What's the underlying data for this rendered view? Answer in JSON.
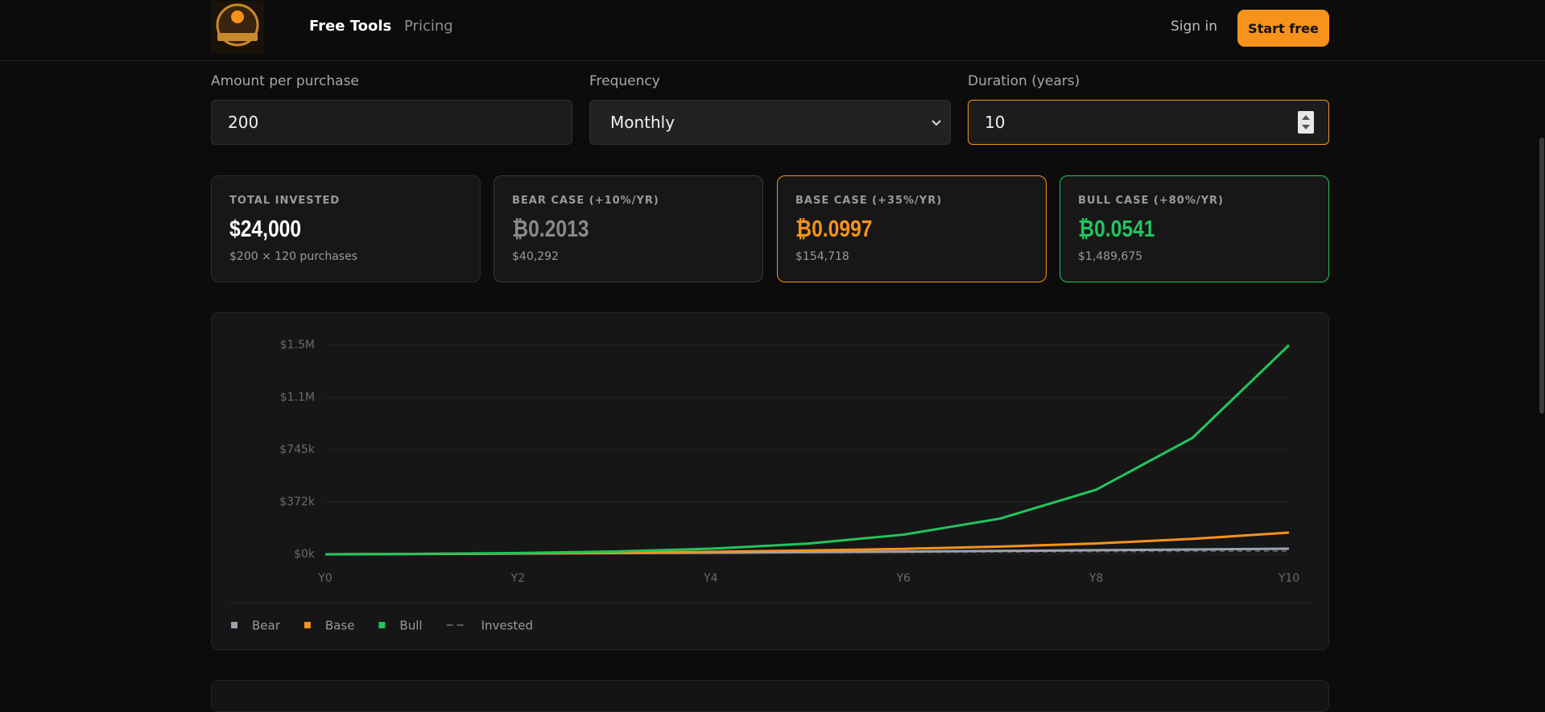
{
  "nav": {
    "links": [
      "Free Tools",
      "Pricing"
    ],
    "sign_in": "Sign in",
    "cta": "Start free"
  },
  "form": {
    "fields": [
      {
        "label": "Amount per purchase",
        "value": "200"
      },
      {
        "label": "Frequency",
        "value": "Monthly"
      },
      {
        "label": "Duration (years)",
        "value": "10"
      }
    ]
  },
  "cards": [
    {
      "label": "TOTAL INVESTED",
      "value": "$24,000",
      "sub": "$200 × 120 purchases"
    },
    {
      "label": "BEAR CASE (+10%/YR)",
      "value": "₿0.2013",
      "sub": "$40,292"
    },
    {
      "label": "BASE CASE (+35%/YR)",
      "value": "₿0.0997",
      "sub": "$154,718"
    },
    {
      "label": "BULL CASE (+80%/YR)",
      "value": "₿0.0541",
      "sub": "$1,489,675"
    }
  ],
  "chart_data": {
    "type": "line",
    "categories": [
      "Y0",
      null,
      "Y2",
      null,
      "Y4",
      null,
      "Y6",
      null,
      "Y8",
      null,
      "Y10"
    ],
    "series": [
      {
        "name": "Invested",
        "color": "#5a5a5a",
        "dashed": true,
        "values": [
          0,
          2400,
          4800,
          7200,
          9600,
          12000,
          14400,
          16800,
          19200,
          21600,
          24000
        ]
      },
      {
        "name": "Bear",
        "color": "#9ca3af",
        "values": [
          0,
          2500,
          5300,
          8300,
          11600,
          15400,
          19500,
          24100,
          29100,
          34500,
          40292
        ]
      },
      {
        "name": "Base",
        "color": "#f7931a",
        "values": [
          0,
          2600,
          6300,
          11300,
          18000,
          27000,
          39000,
          55000,
          77000,
          110000,
          154718
        ]
      },
      {
        "name": "Bull",
        "color": "#22c55e",
        "values": [
          0,
          3300,
          9000,
          20000,
          40000,
          76000,
          140000,
          254000,
          460000,
          830000,
          1489675
        ]
      }
    ],
    "legend_order": [
      1,
      2,
      3,
      0
    ],
    "ylim": [
      0,
      1489675
    ],
    "yticks": [
      {
        "value": 0,
        "label": "$0k"
      },
      {
        "value": 372419,
        "label": "$372k"
      },
      {
        "value": 744838,
        "label": "$745k"
      },
      {
        "value": 1117256,
        "label": "$1.1M"
      },
      {
        "value": 1489675,
        "label": "$1.5M"
      }
    ],
    "grid": true
  }
}
